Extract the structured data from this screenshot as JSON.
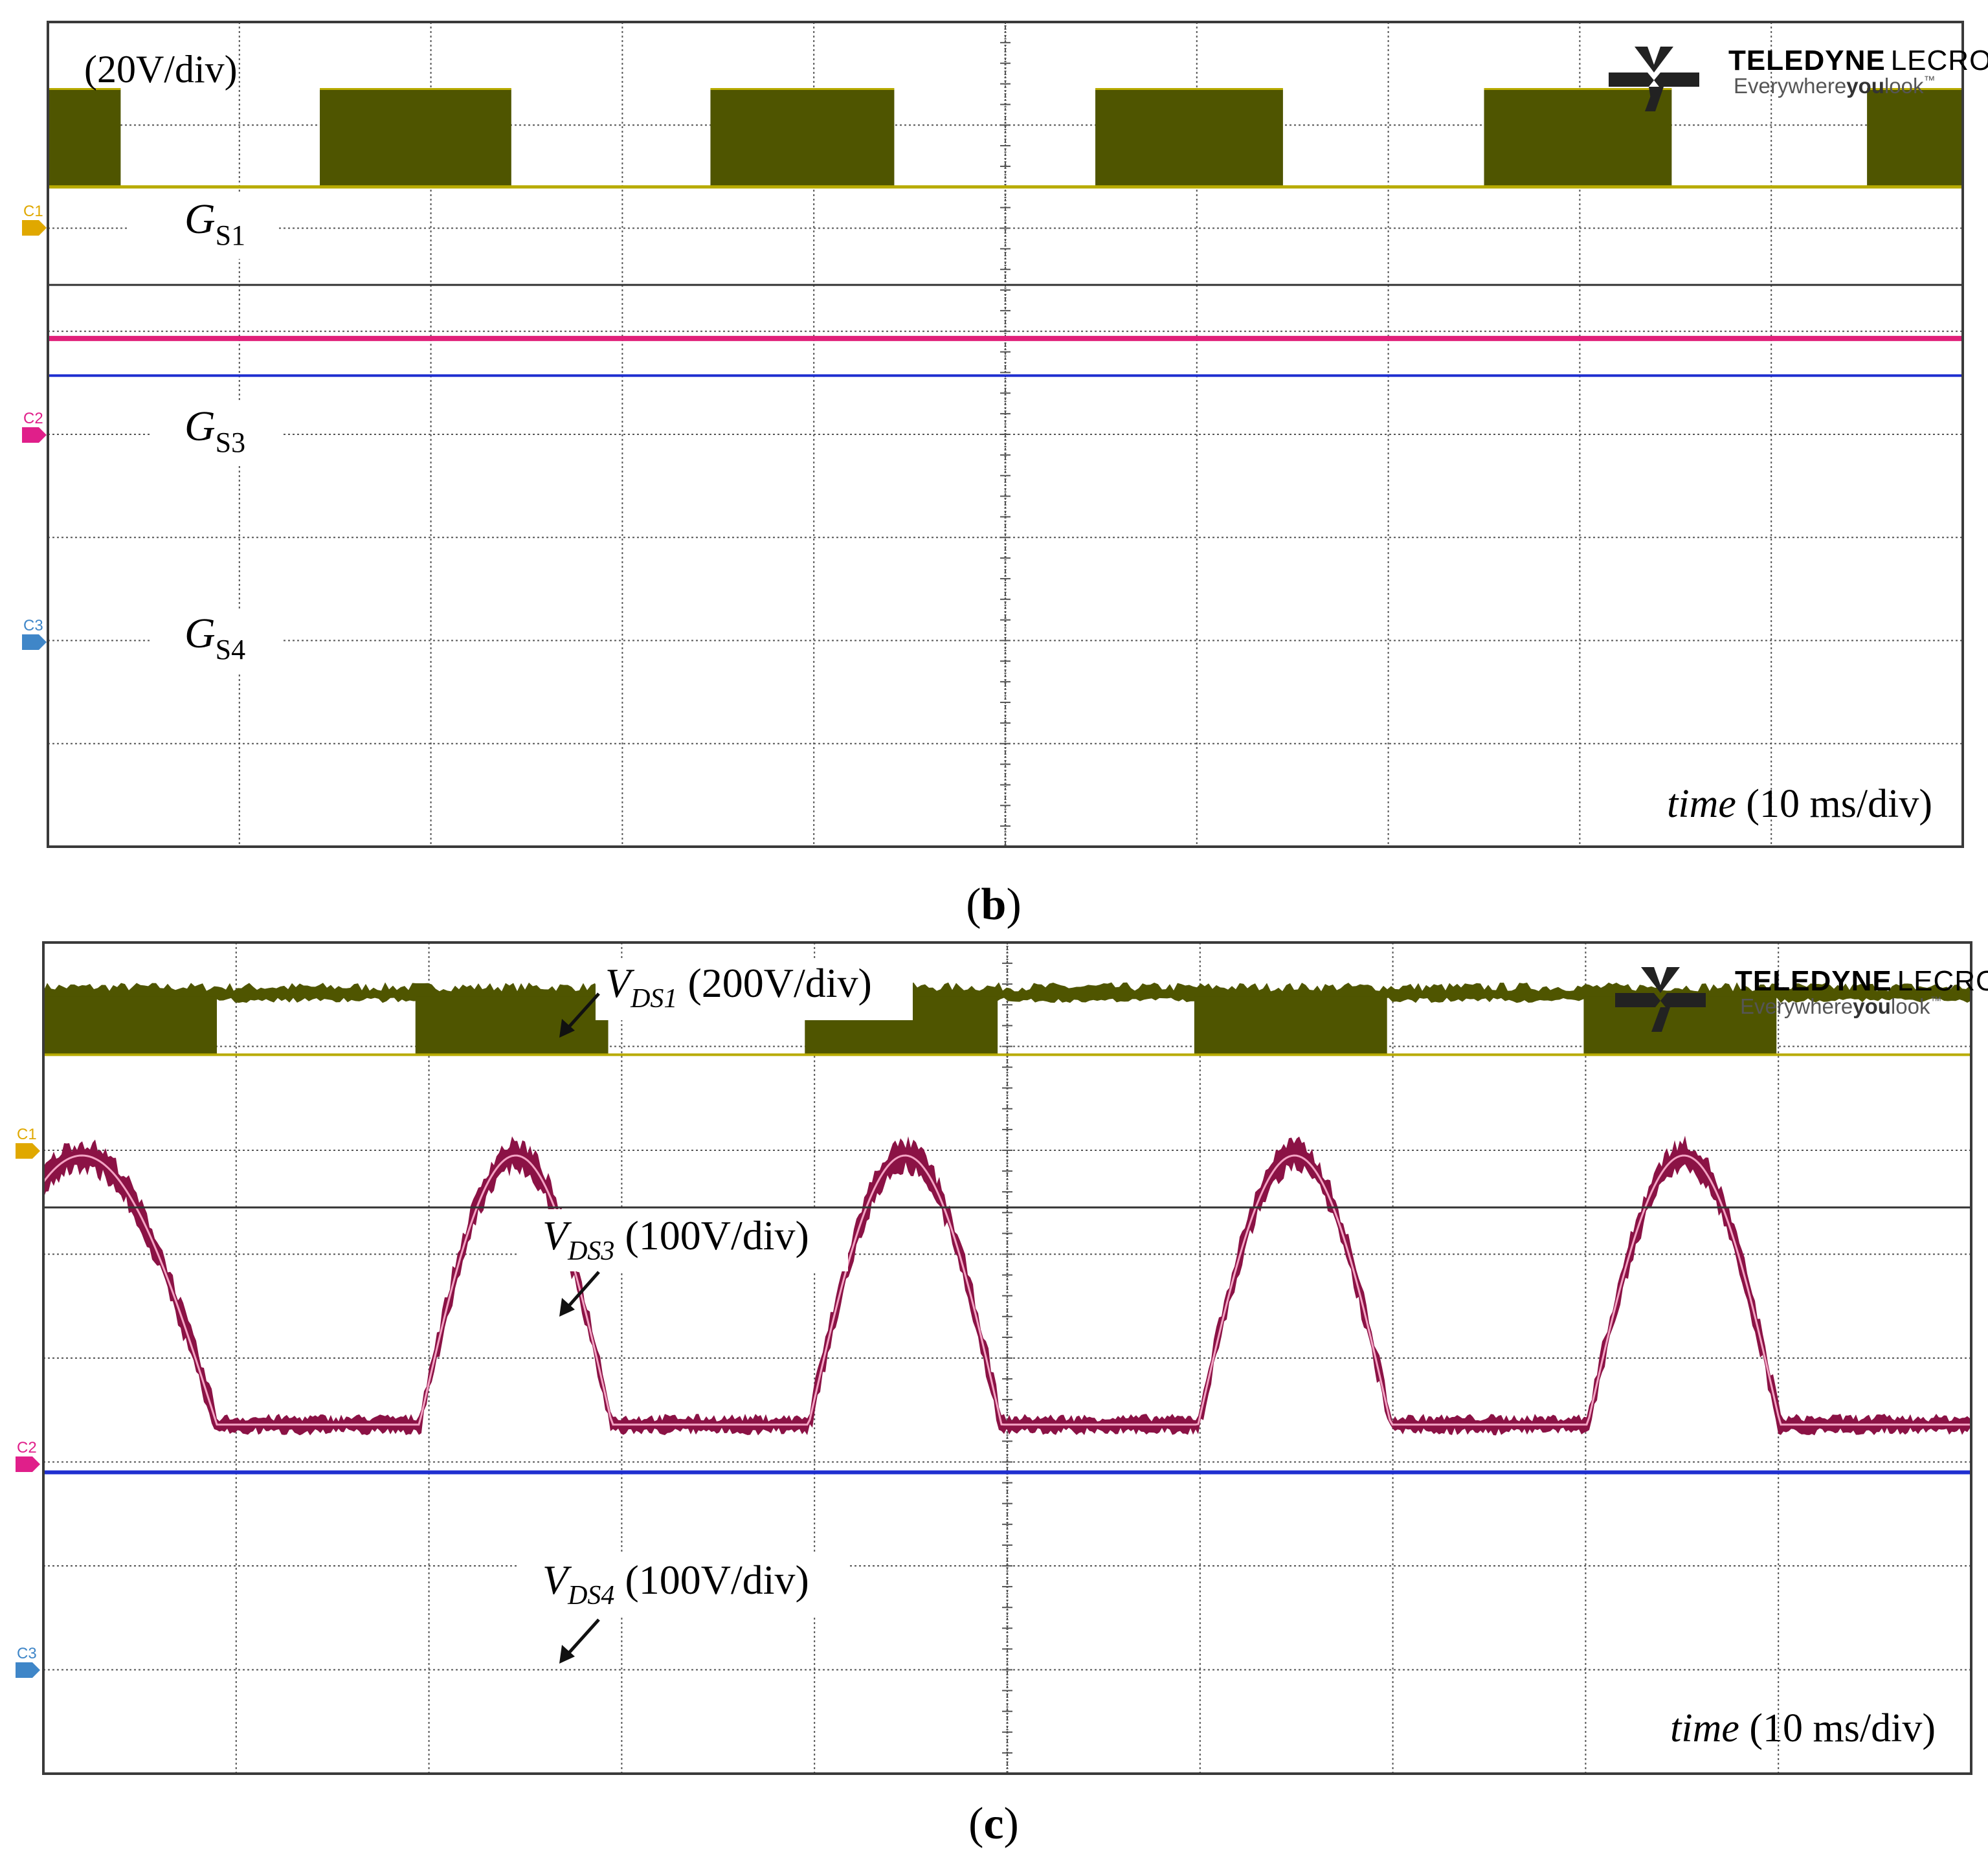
{
  "colors": {
    "background": "#ffffff",
    "frame": "#3a3a3a",
    "grid": "#555555",
    "ch1": "#4f5500",
    "ch1_edge": "#b8ab00",
    "ch1_marker": "#e0a800",
    "ch2_pink": "#e0207a",
    "ch2_wave": "#8b1245",
    "ch2_trace": "#f4a3c4",
    "ch3": "#1f2fd0",
    "ch3_marker": "#3f86c8",
    "ch2_marker": "#e01f8a",
    "black_line": "#333333",
    "logo": "#222222"
  },
  "icons": {
    "logo": "teledyne-lecroy-logo-icon",
    "channel_marker": "channel-marker-arrow-icon",
    "pointer": "arrow-pointer-icon"
  },
  "chart_data": [
    {
      "panel": "(b)",
      "caption_letter": "b",
      "type": "line",
      "scale_text": "(20V/div)",
      "brand": {
        "name_bold": "TELEDYNE",
        "name_light": "LECROY",
        "tagline_a": "Everywhere",
        "tagline_b": "you",
        "tagline_c": "look",
        "tm": "™"
      },
      "time_label": {
        "word": "time",
        "rest": " (10 ms/div)"
      },
      "grid": {
        "x_divisions": 10,
        "y_divisions": 8
      },
      "channel_markers": [
        "C1",
        "C2",
        "C3"
      ],
      "signal_labels": [
        {
          "main": "G",
          "sub": "S1"
        },
        {
          "main": "G",
          "sub": "S3"
        },
        {
          "main": "G",
          "sub": "S4"
        }
      ],
      "series": [
        {
          "channel": "C1",
          "high_intervals_div": [
            [
              0,
              0.38
            ],
            [
              1.42,
              2.42
            ],
            [
              3.46,
              4.42
            ],
            [
              5.47,
              6.45
            ],
            [
              7.5,
              8.48
            ],
            [
              9.5,
              10
            ]
          ]
        },
        {
          "channel": "C2",
          "constant": true
        },
        {
          "channel": "C3",
          "constant": true
        }
      ]
    },
    {
      "panel": "(c)",
      "caption_letter": "c",
      "type": "line",
      "brand": {
        "name_bold": "TELEDYNE",
        "name_light": "LECROY",
        "tagline_a": "Everywhere",
        "tagline_b": "you",
        "tagline_c": "look",
        "tm": "™"
      },
      "time_label": {
        "word": "time",
        "rest": " (10 ms/div)"
      },
      "grid": {
        "x_divisions": 10,
        "y_divisions": 8
      },
      "channel_markers": [
        "C1",
        "C2",
        "C3"
      ],
      "signal_labels": [
        {
          "main": "V",
          "sub": "DS1",
          "scale": " (200V/div)"
        },
        {
          "main": "V",
          "sub": "DS3",
          "scale": " (100V/div)"
        },
        {
          "main": "V",
          "sub": "DS4",
          "scale": " (100V/div)"
        }
      ],
      "series": [
        {
          "channel": "C1",
          "block_intervals_div": [
            [
              0,
              0.9
            ],
            [
              1.93,
              2.93
            ],
            [
              3.95,
              4.95
            ],
            [
              5.97,
              6.97
            ],
            [
              7.99,
              8.99
            ]
          ]
        },
        {
          "channel": "C2",
          "hump_intervals_div": [
            [
              -0.5,
              0.9
            ],
            [
              1.95,
              2.95
            ],
            [
              3.97,
              4.97
            ],
            [
              5.99,
              6.99
            ],
            [
              8.01,
              9.01
            ]
          ]
        },
        {
          "channel": "C3",
          "constant": true
        }
      ]
    }
  ]
}
